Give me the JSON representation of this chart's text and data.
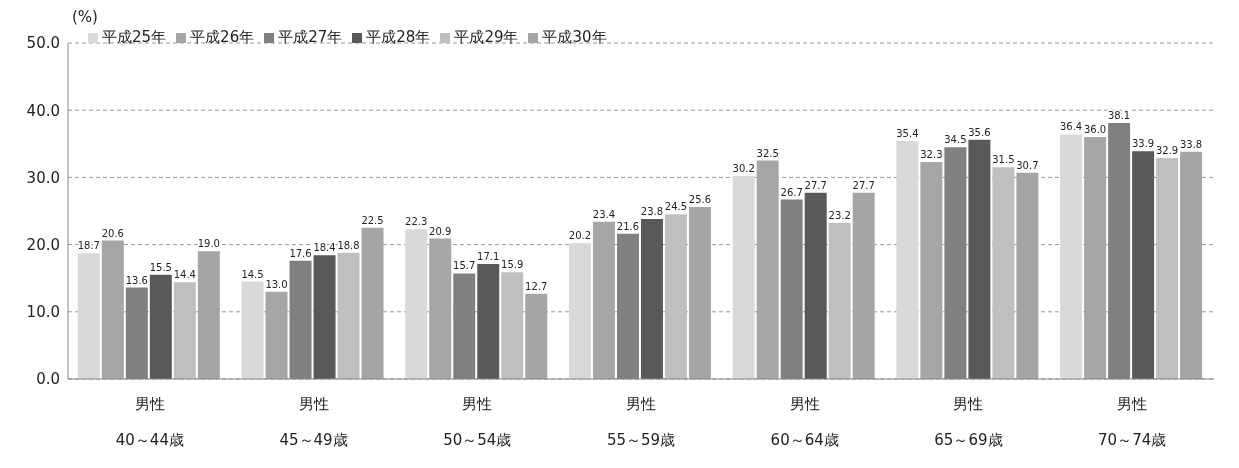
{
  "chart_data": {
    "type": "bar",
    "ylabel": "(%)",
    "categories": [
      "男性\n40～44歳",
      "男性\n45～49歳",
      "男性\n50～54歳",
      "男性\n55～59歳",
      "男性\n60～64歳",
      "男性\n65～69歳",
      "男性\n70～74歳"
    ],
    "series": [
      {
        "name": "平成25年",
        "color": "#d9d9d9",
        "values": [
          18.7,
          14.5,
          22.3,
          20.2,
          30.2,
          35.4,
          36.4
        ],
        "value_labels": [
          "18.7",
          "14.5",
          "22.3",
          "20.2",
          "30.2",
          "35.4",
          "36.4"
        ]
      },
      {
        "name": "平成26年",
        "color": "#a6a6a6",
        "values": [
          20.6,
          13.0,
          20.9,
          23.4,
          32.5,
          32.3,
          36.0
        ],
        "value_labels": [
          "20.6",
          "13.0",
          "20.9",
          "23.4",
          "32.5",
          "32.3",
          "36.0"
        ]
      },
      {
        "name": "平成27年",
        "color": "#808080",
        "values": [
          13.6,
          17.6,
          15.7,
          21.6,
          26.7,
          34.5,
          38.1
        ],
        "value_labels": [
          "13.6",
          "17.6",
          "15.7",
          "21.6",
          "26.7",
          "34.5",
          "38.1"
        ]
      },
      {
        "name": "平成28年",
        "color": "#595959",
        "values": [
          15.5,
          18.4,
          17.1,
          23.8,
          27.7,
          35.6,
          33.9
        ],
        "value_labels": [
          "15.5",
          "18.4",
          "17.1",
          "23.8",
          "27.7",
          "35.6",
          "33.9"
        ]
      },
      {
        "name": "平成29年",
        "color": "#bfbfbf",
        "values": [
          14.4,
          18.8,
          15.9,
          24.5,
          23.2,
          31.5,
          32.9
        ],
        "value_labels": [
          "14.4",
          "18.8",
          "15.9",
          "24.5",
          "23.2",
          "31.5",
          "32.9"
        ]
      },
      {
        "name": "平成30年",
        "color": "#a5a5a5",
        "values": [
          19.0,
          22.5,
          12.7,
          25.6,
          27.7,
          30.7,
          33.8
        ],
        "value_labels": [
          "19.0",
          "22.5",
          "12.7",
          "25.6",
          "27.7",
          "30.7",
          "33.8"
        ]
      }
    ],
    "ylim": [
      0,
      50
    ],
    "yticks": [
      {
        "value": 0,
        "label": "0.0"
      },
      {
        "value": 10,
        "label": "10.0"
      },
      {
        "value": 20,
        "label": "20.0"
      },
      {
        "value": 30,
        "label": "30.0"
      },
      {
        "value": 40,
        "label": "40.0"
      },
      {
        "value": 50,
        "label": "50.0"
      }
    ],
    "grid": "y",
    "legend": "top left"
  }
}
